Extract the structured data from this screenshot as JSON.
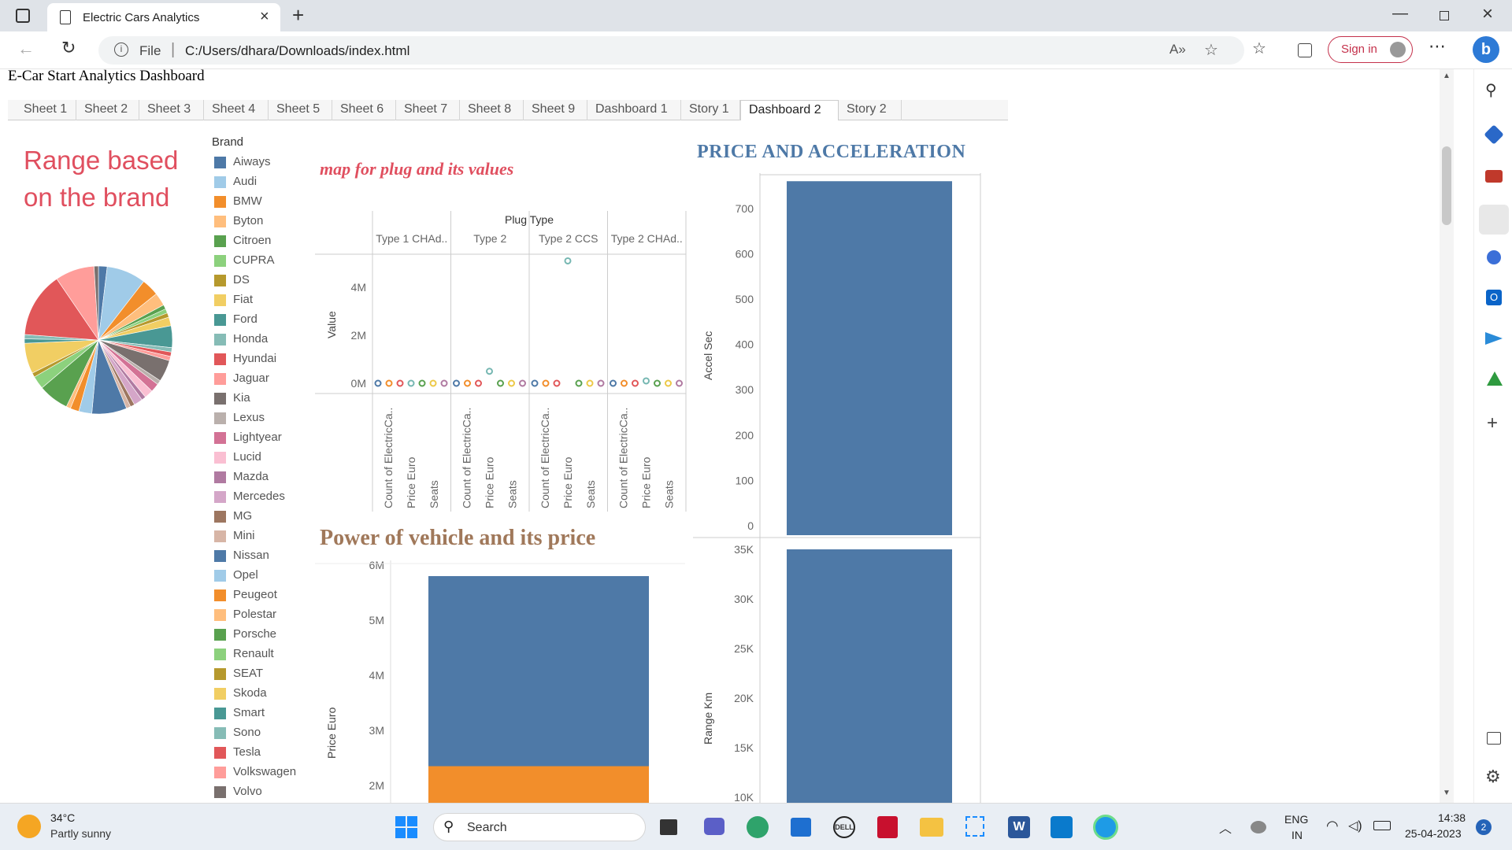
{
  "browser": {
    "tab_title": "Electric Cars Analytics",
    "url_prefix": "File",
    "url": "C:/Users/dhara/Downloads/index.html",
    "signin_label": "Sign in"
  },
  "page": {
    "title": "E-Car Start Analytics Dashboard",
    "tabs": [
      "Sheet 1",
      "Sheet 2",
      "Sheet 3",
      "Sheet 4",
      "Sheet 5",
      "Sheet 6",
      "Sheet 7",
      "Sheet 8",
      "Sheet 9",
      "Dashboard 1",
      "Story 1",
      "Dashboard 2",
      "Story 2"
    ],
    "active_tab": "Dashboard 2"
  },
  "range_panel": {
    "title": "Range based on the brand",
    "legend_title": "Brand",
    "brands": [
      {
        "name": "Aiways",
        "color": "#4e79a7"
      },
      {
        "name": "Audi",
        "color": "#a0cbe8"
      },
      {
        "name": "BMW",
        "color": "#f28e2b"
      },
      {
        "name": "Byton",
        "color": "#ffbe7d"
      },
      {
        "name": "Citroen",
        "color": "#59a14f"
      },
      {
        "name": "CUPRA",
        "color": "#8cd17d"
      },
      {
        "name": "DS",
        "color": "#b6992d"
      },
      {
        "name": "Fiat",
        "color": "#f1ce63"
      },
      {
        "name": "Ford",
        "color": "#499894"
      },
      {
        "name": "Honda",
        "color": "#86bcb6"
      },
      {
        "name": "Hyundai",
        "color": "#e15759"
      },
      {
        "name": "Jaguar",
        "color": "#ff9d9a"
      },
      {
        "name": "Kia",
        "color": "#79706e"
      },
      {
        "name": "Lexus",
        "color": "#bab0ac"
      },
      {
        "name": "Lightyear",
        "color": "#d37295"
      },
      {
        "name": "Lucid",
        "color": "#fabfd2"
      },
      {
        "name": "Mazda",
        "color": "#b07aa1"
      },
      {
        "name": "Mercedes",
        "color": "#d4a6c8"
      },
      {
        "name": "MG",
        "color": "#9d7660"
      },
      {
        "name": "Mini",
        "color": "#d7b5a6"
      },
      {
        "name": "Nissan",
        "color": "#4e79a7"
      },
      {
        "name": "Opel",
        "color": "#a0cbe8"
      },
      {
        "name": "Peugeot",
        "color": "#f28e2b"
      },
      {
        "name": "Polestar",
        "color": "#ffbe7d"
      },
      {
        "name": "Porsche",
        "color": "#59a14f"
      },
      {
        "name": "Renault",
        "color": "#8cd17d"
      },
      {
        "name": "SEAT",
        "color": "#b6992d"
      },
      {
        "name": "Skoda",
        "color": "#f1ce63"
      },
      {
        "name": "Smart",
        "color": "#499894"
      },
      {
        "name": "Sono",
        "color": "#86bcb6"
      },
      {
        "name": "Tesla",
        "color": "#e15759"
      },
      {
        "name": "Volkswagen",
        "color": "#ff9d9a"
      },
      {
        "name": "Volvo",
        "color": "#79706e"
      }
    ]
  },
  "chart_data": [
    {
      "type": "pie",
      "title": "Range based on the brand",
      "legend_title": "Brand",
      "slices": [
        {
          "label": "Aiways",
          "value": 2,
          "color": "#4e79a7"
        },
        {
          "label": "Audi",
          "value": 9,
          "color": "#a0cbe8"
        },
        {
          "label": "BMW",
          "value": 4,
          "color": "#f28e2b"
        },
        {
          "label": "Byton",
          "value": 3,
          "color": "#ffbe7d"
        },
        {
          "label": "Citroen",
          "value": 1,
          "color": "#59a14f"
        },
        {
          "label": "CUPRA",
          "value": 1,
          "color": "#8cd17d"
        },
        {
          "label": "DS",
          "value": 1,
          "color": "#b6992d"
        },
        {
          "label": "Fiat",
          "value": 2,
          "color": "#f1ce63"
        },
        {
          "label": "Ford",
          "value": 5,
          "color": "#499894"
        },
        {
          "label": "Honda",
          "value": 1,
          "color": "#86bcb6"
        },
        {
          "label": "Hyundai",
          "value": 1,
          "color": "#e15759"
        },
        {
          "label": "Jaguar",
          "value": 1,
          "color": "#ff9d9a"
        },
        {
          "label": "Kia",
          "value": 5,
          "color": "#79706e"
        },
        {
          "label": "Lexus",
          "value": 1,
          "color": "#bab0ac"
        },
        {
          "label": "Lightyear",
          "value": 2,
          "color": "#d37295"
        },
        {
          "label": "Lucid",
          "value": 2,
          "color": "#fabfd2"
        },
        {
          "label": "Mazda",
          "value": 1,
          "color": "#b07aa1"
        },
        {
          "label": "Mercedes",
          "value": 2,
          "color": "#d4a6c8"
        },
        {
          "label": "MG",
          "value": 1,
          "color": "#9d7660"
        },
        {
          "label": "Mini",
          "value": 1,
          "color": "#d7b5a6"
        },
        {
          "label": "Nissan",
          "value": 8,
          "color": "#4e79a7"
        },
        {
          "label": "Opel",
          "value": 3,
          "color": "#a0cbe8"
        },
        {
          "label": "Peugeot",
          "value": 2,
          "color": "#f28e2b"
        },
        {
          "label": "Polestar",
          "value": 1,
          "color": "#ffbe7d"
        },
        {
          "label": "Porsche",
          "value": 7,
          "color": "#59a14f"
        },
        {
          "label": "Renault",
          "value": 3,
          "color": "#8cd17d"
        },
        {
          "label": "SEAT",
          "value": 1,
          "color": "#b6992d"
        },
        {
          "label": "Skoda",
          "value": 7,
          "color": "#f1ce63"
        },
        {
          "label": "Smart",
          "value": 1,
          "color": "#499894"
        },
        {
          "label": "Sono",
          "value": 1,
          "color": "#86bcb6"
        },
        {
          "label": "Tesla",
          "value": 15,
          "color": "#e15759"
        },
        {
          "label": "Volkswagen",
          "value": 9,
          "color": "#ff9d9a"
        },
        {
          "label": "Volvo",
          "value": 1,
          "color": "#79706e"
        }
      ]
    },
    {
      "type": "scatter",
      "title": "map for plug and its values",
      "column_header": "Plug Type",
      "columns": [
        "Type 1 CHAd..",
        "Type 2",
        "Type 2 CCS",
        "Type 2 CHAd.."
      ],
      "measures": [
        "Count of ElectricCa..",
        "Price Euro",
        "Seats"
      ],
      "ylabel": "Value",
      "yticks": [
        "0M",
        "2M",
        "4M"
      ],
      "ylim": [
        0,
        5500000
      ],
      "points": [
        {
          "col": 0,
          "measure": 0,
          "value": 0,
          "color": "#4e79a7"
        },
        {
          "col": 0,
          "measure": 0,
          "value": 0,
          "color": "#f28e2b"
        },
        {
          "col": 0,
          "measure": 1,
          "value": 0,
          "color": "#e15759"
        },
        {
          "col": 0,
          "measure": 1,
          "value": 0,
          "color": "#76b7b2"
        },
        {
          "col": 0,
          "measure": 1,
          "value": 0,
          "color": "#59a14f"
        },
        {
          "col": 0,
          "measure": 2,
          "value": 0,
          "color": "#edc948"
        },
        {
          "col": 0,
          "measure": 2,
          "value": 0,
          "color": "#b07aa1"
        },
        {
          "col": 1,
          "measure": 0,
          "value": 0,
          "color": "#4e79a7"
        },
        {
          "col": 1,
          "measure": 0,
          "value": 0,
          "color": "#f28e2b"
        },
        {
          "col": 1,
          "measure": 1,
          "value": 0,
          "color": "#e15759"
        },
        {
          "col": 1,
          "measure": 1,
          "value": 500000,
          "color": "#76b7b2"
        },
        {
          "col": 1,
          "measure": 1,
          "value": 0,
          "color": "#59a14f"
        },
        {
          "col": 1,
          "measure": 2,
          "value": 0,
          "color": "#edc948"
        },
        {
          "col": 1,
          "measure": 2,
          "value": 0,
          "color": "#b07aa1"
        },
        {
          "col": 2,
          "measure": 0,
          "value": 0,
          "color": "#4e79a7"
        },
        {
          "col": 2,
          "measure": 0,
          "value": 0,
          "color": "#f28e2b"
        },
        {
          "col": 2,
          "measure": 1,
          "value": 0,
          "color": "#e15759"
        },
        {
          "col": 2,
          "measure": 1,
          "value": 5100000,
          "color": "#76b7b2"
        },
        {
          "col": 2,
          "measure": 1,
          "value": 0,
          "color": "#59a14f"
        },
        {
          "col": 2,
          "measure": 2,
          "value": 0,
          "color": "#edc948"
        },
        {
          "col": 2,
          "measure": 2,
          "value": 0,
          "color": "#b07aa1"
        },
        {
          "col": 3,
          "measure": 0,
          "value": 0,
          "color": "#4e79a7"
        },
        {
          "col": 3,
          "measure": 0,
          "value": 0,
          "color": "#f28e2b"
        },
        {
          "col": 3,
          "measure": 1,
          "value": 0,
          "color": "#e15759"
        },
        {
          "col": 3,
          "measure": 1,
          "value": 100000,
          "color": "#76b7b2"
        },
        {
          "col": 3,
          "measure": 1,
          "value": 0,
          "color": "#59a14f"
        },
        {
          "col": 3,
          "measure": 2,
          "value": 0,
          "color": "#edc948"
        },
        {
          "col": 3,
          "measure": 2,
          "value": 0,
          "color": "#b07aa1"
        }
      ]
    },
    {
      "type": "bar",
      "stacked": true,
      "title": "Power of vehicle and its price",
      "ylabel": "Price Euro",
      "yticks": [
        "2M",
        "3M",
        "4M",
        "5M",
        "6M"
      ],
      "series": [
        {
          "name": "",
          "values": [
            5800000
          ],
          "color": "#4e79a7"
        },
        {
          "name": "",
          "values": [
            2350000
          ],
          "color": "#f28e2b"
        }
      ]
    },
    {
      "type": "bar",
      "title": "PRICE AND ACCELERATION",
      "panels": [
        {
          "ylabel": "Accel Sec",
          "yticks": [
            "0",
            "100",
            "200",
            "300",
            "400",
            "500",
            "600",
            "700"
          ],
          "ylim": [
            0,
            760
          ],
          "values": [
            760
          ],
          "color": "#4e79a7"
        },
        {
          "ylabel": "Range Km",
          "yticks": [
            "10K",
            "15K",
            "20K",
            "25K",
            "30K",
            "35K"
          ],
          "ylim": [
            10000,
            35500
          ],
          "values": [
            35000
          ],
          "color": "#4e79a7"
        }
      ]
    }
  ],
  "taskbar": {
    "temperature": "34°C",
    "weather": "Partly sunny",
    "search": "Search",
    "lang1": "ENG",
    "lang2": "IN",
    "time": "14:38",
    "date": "25-04-2023",
    "notifications": "2"
  }
}
